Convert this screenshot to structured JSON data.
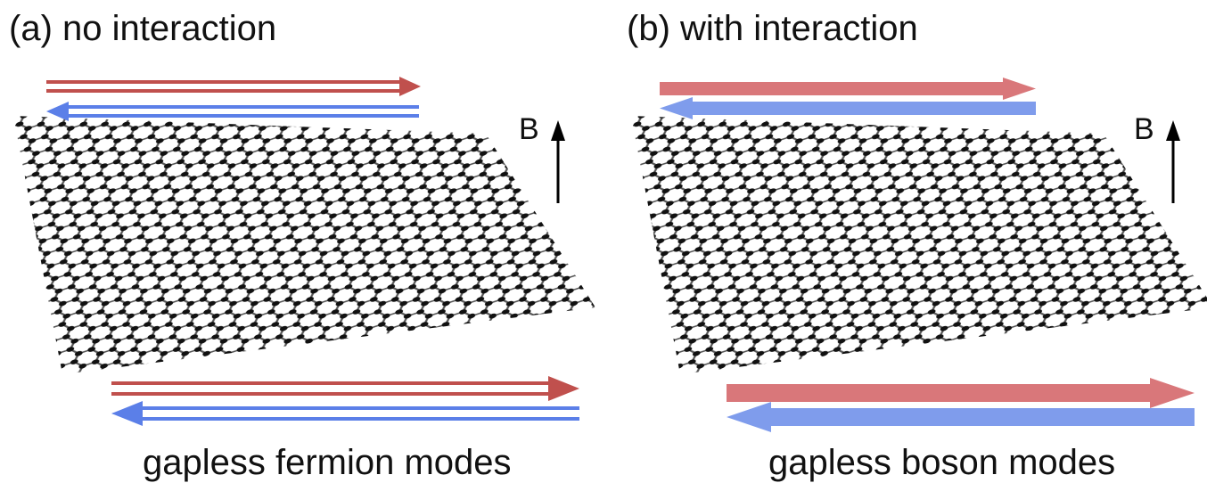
{
  "panels": [
    {
      "label": "(a) no interaction",
      "field": "B",
      "caption": "gapless fermion modes"
    },
    {
      "label": "(b) with interaction",
      "field": "B",
      "caption": "gapless boson modes"
    }
  ]
}
